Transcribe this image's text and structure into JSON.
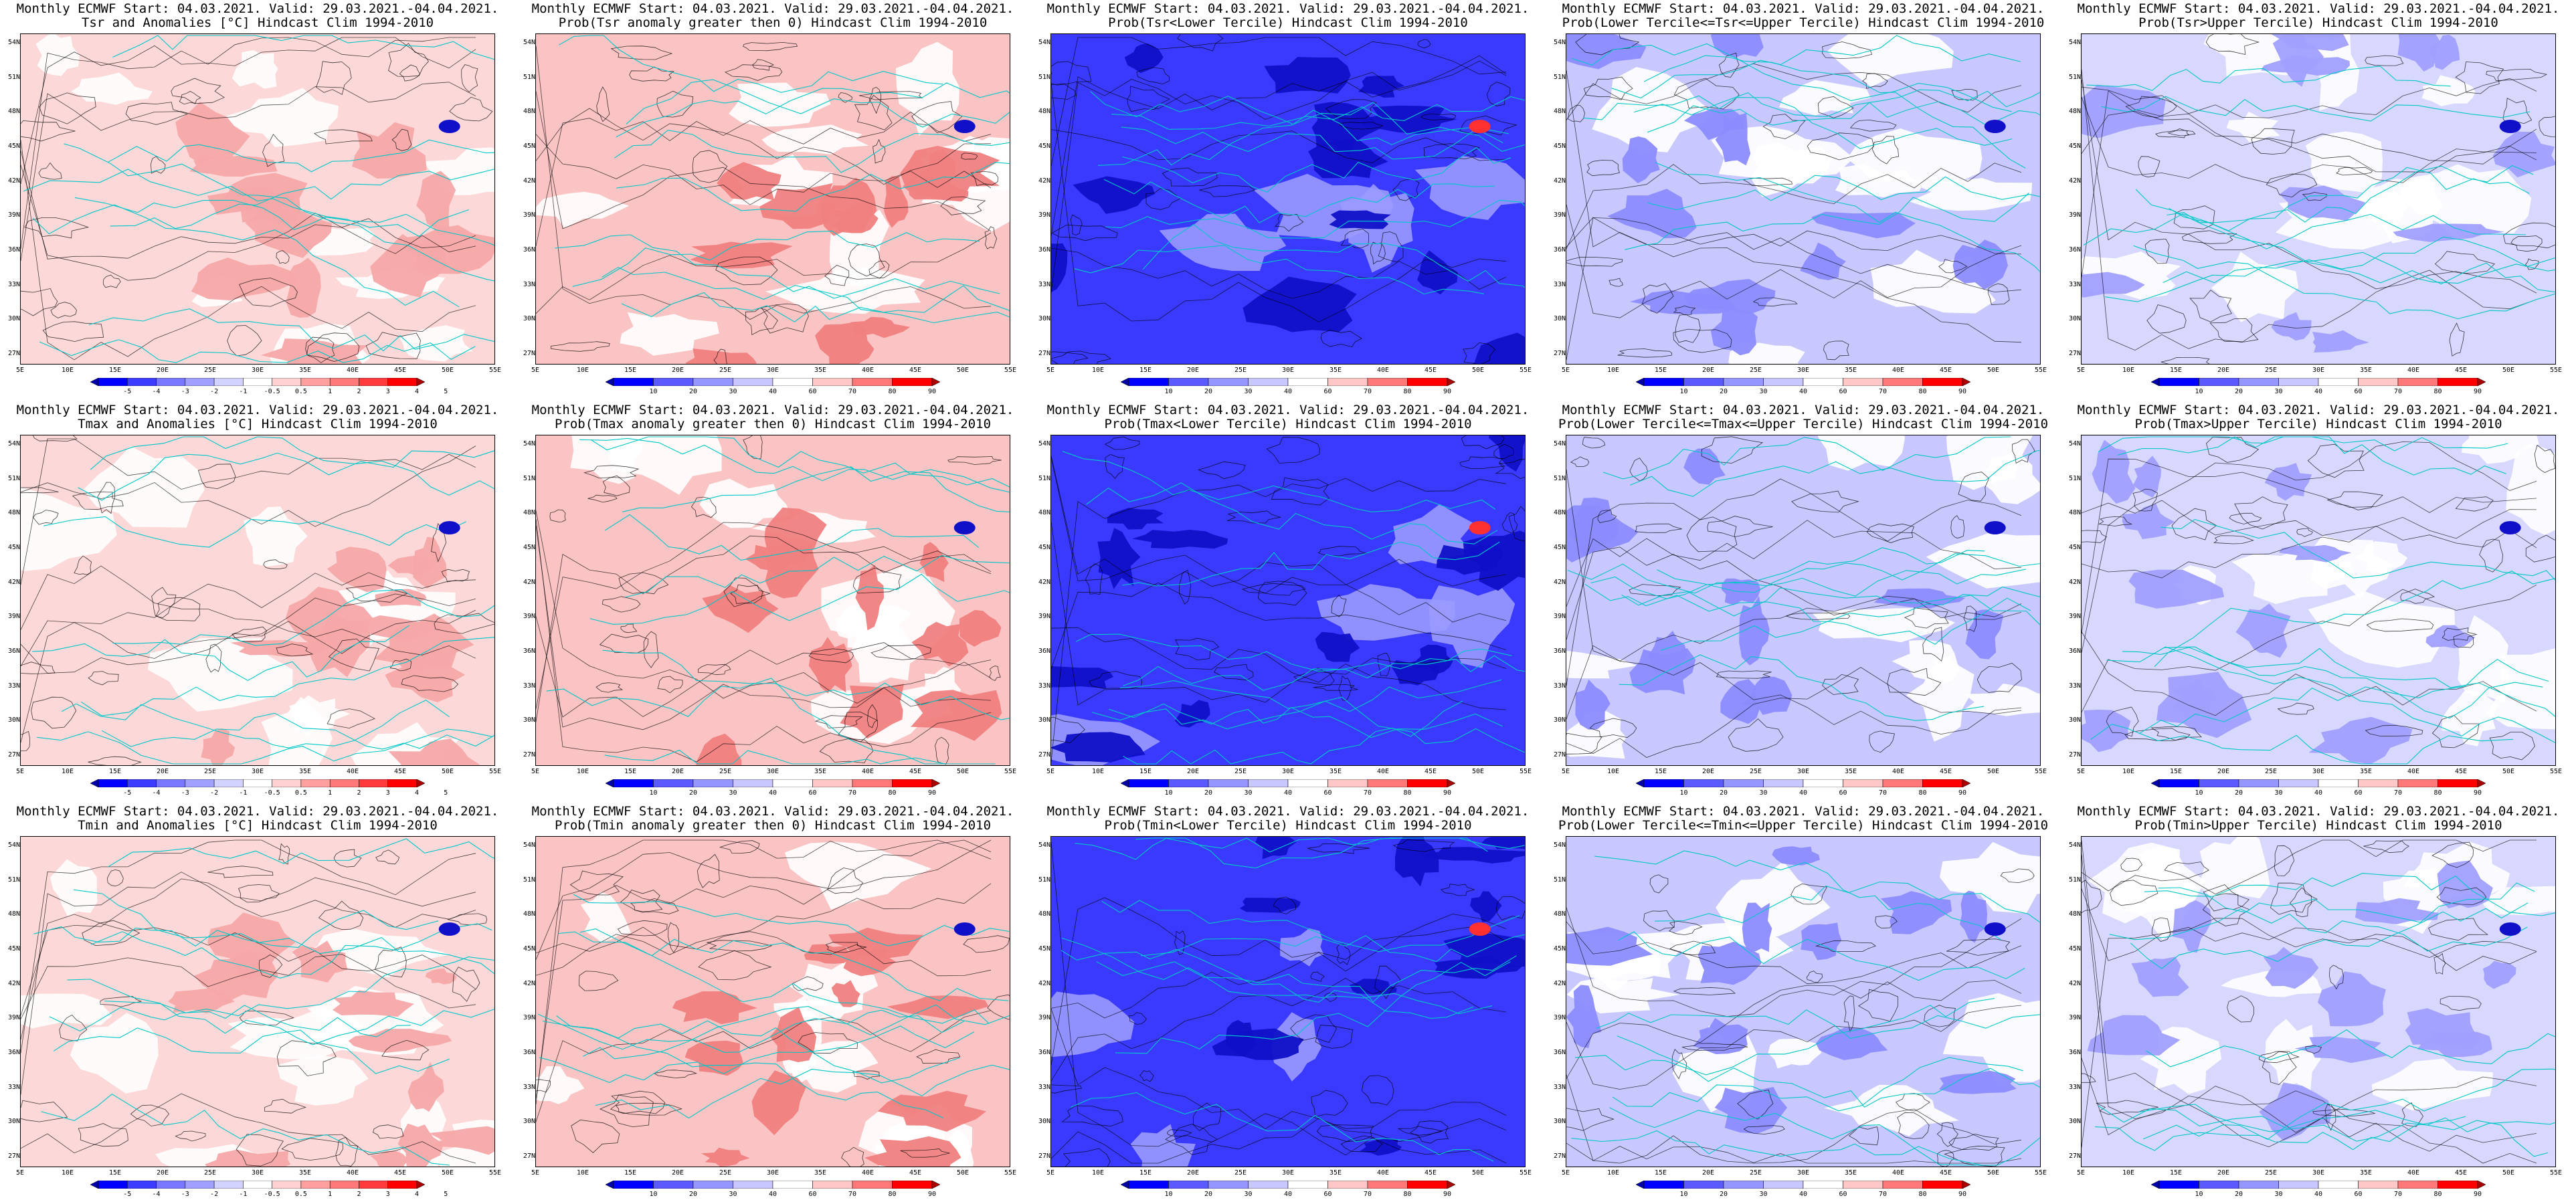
{
  "title_line1": "Monthly ECMWF Start: 04.03.2021. Valid: 29.03.2021.-04.04.2021.",
  "lat_labels": [
    "54N",
    "51N",
    "48N",
    "45N",
    "42N",
    "39N",
    "36N",
    "33N",
    "30N",
    "27N"
  ],
  "lon_labels": [
    "5E",
    "10E",
    "15E",
    "20E",
    "25E",
    "30E",
    "35E",
    "40E",
    "45E",
    "50E",
    "55E"
  ],
  "anomaly_colorbar": {
    "labels": [
      "-5",
      "-4",
      "-3",
      "-2",
      "-1",
      "-0.5",
      "0.5",
      "1",
      "2",
      "3",
      "4",
      "5"
    ],
    "colors": [
      "#0000aa",
      "#0000ff",
      "#3c3cff",
      "#7878ff",
      "#a0a0ff",
      "#d2d2ff",
      "#ffffff",
      "#ffd2d2",
      "#ffa0a0",
      "#ff7878",
      "#ff3c3c",
      "#ff0000",
      "#aa0000"
    ]
  },
  "prob_colorbar": {
    "labels": [
      "10",
      "20",
      "30",
      "40",
      "60",
      "70",
      "80",
      "90"
    ],
    "colors": [
      "#0000aa",
      "#0000ff",
      "#5a5aff",
      "#9696ff",
      "#c8c8ff",
      "#ffffff",
      "#ffc8c8",
      "#ff7878",
      "#ff0000",
      "#aa0000"
    ]
  },
  "panels": [
    {
      "title2": "Tsr and Anomalies [°C] Hindcast Clim 1994-2010",
      "kind": "anom",
      "base": "#fdd8d8",
      "blobs": "#f6a8a8",
      "colorbar": "anomaly"
    },
    {
      "title2": "Prob(Tsr anomaly greater then 0) Hindcast Clim 1994-2010",
      "kind": "pgt",
      "base": "#fbc4c4",
      "blobs": "#f08080",
      "colorbar": "prob"
    },
    {
      "title2": "Prob(Tsr<Lower Tercile) Hindcast Clim 1994-2010",
      "kind": "plow",
      "base": "#3a3aff",
      "blobs": "#1010c8",
      "colorbar": "prob"
    },
    {
      "title2": "Prob(Lower Tercile<=Tsr<=Upper Tercile) Hindcast Clim 1994-2010",
      "kind": "pmid",
      "base": "#c8c8ff",
      "blobs": "#8c8cff",
      "colorbar": "prob"
    },
    {
      "title2": "Prob(Tsr>Upper Tercile) Hindcast Clim 1994-2010",
      "kind": "pup",
      "base": "#d8d8ff",
      "blobs": "#a0a0ff",
      "colorbar": "prob"
    },
    {
      "title2": "Tmax and Anomalies [°C] Hindcast Clim 1994-2010",
      "kind": "anom",
      "base": "#fdd8d8",
      "blobs": "#f6a8a8",
      "colorbar": "anomaly"
    },
    {
      "title2": "Prob(Tmax anomaly greater then 0) Hindcast Clim 1994-2010",
      "kind": "pgt",
      "base": "#fbc4c4",
      "blobs": "#f08080",
      "colorbar": "prob"
    },
    {
      "title2": "Prob(Tmax<Lower Tercile) Hindcast Clim 1994-2010",
      "kind": "plow",
      "base": "#3a3aff",
      "blobs": "#1010c8",
      "colorbar": "prob"
    },
    {
      "title2": "Prob(Lower Tercile<=Tmax<=Upper Tercile) Hindcast Clim 1994-2010",
      "kind": "pmid",
      "base": "#c8c8ff",
      "blobs": "#8c8cff",
      "colorbar": "prob"
    },
    {
      "title2": "Prob(Tmax>Upper Tercile) Hindcast Clim 1994-2010",
      "kind": "pup",
      "base": "#d8d8ff",
      "blobs": "#a0a0ff",
      "colorbar": "prob"
    },
    {
      "title2": "Tmin and Anomalies [°C] Hindcast Clim 1994-2010",
      "kind": "anom",
      "base": "#fdd8d8",
      "blobs": "#f6a8a8",
      "colorbar": "anomaly"
    },
    {
      "title2": "Prob(Tmin anomaly greater then 0) Hindcast Clim 1994-2010",
      "kind": "pgt",
      "base": "#fbc4c4",
      "blobs": "#f08080",
      "colorbar": "prob"
    },
    {
      "title2": "Prob(Tmin<Lower Tercile) Hindcast Clim 1994-2010",
      "kind": "plow",
      "base": "#3a3aff",
      "blobs": "#1010c8",
      "colorbar": "prob"
    },
    {
      "title2": "Prob(Lower Tercile<=Tmin<=Upper Tercile) Hindcast Clim 1994-2010",
      "kind": "pmid",
      "base": "#c8c8ff",
      "blobs": "#8c8cff",
      "colorbar": "prob"
    },
    {
      "title2": "Prob(Tmin>Upper Tercile) Hindcast Clim 1994-2010",
      "kind": "pup",
      "base": "#d8d8ff",
      "blobs": "#a0a0ff",
      "colorbar": "prob"
    }
  ]
}
